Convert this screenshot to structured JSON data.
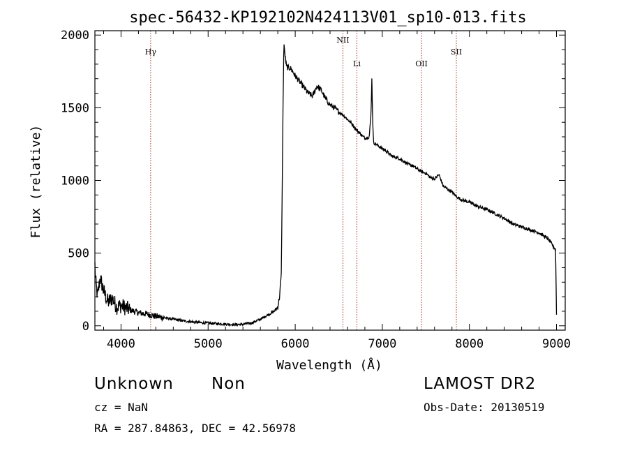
{
  "chart_data": {
    "type": "line",
    "title": "spec-56432-KP192102N424113V01_sp10-013.fits",
    "xlabel": "Wavelength (Å)",
    "ylabel": "Flux (relative)",
    "xlim": [
      3700,
      9100
    ],
    "ylim": [
      -30,
      2030
    ],
    "xticks": [
      4000,
      5000,
      6000,
      7000,
      8000,
      9000
    ],
    "yticks": [
      0,
      500,
      1000,
      1500,
      2000
    ],
    "grid": false,
    "lines": [
      {
        "label": "Hγ",
        "x": 4340
      },
      {
        "label": "NII",
        "x": 6548
      },
      {
        "label": "Li",
        "x": 6708
      },
      {
        "label": "OII",
        "x": 7450
      },
      {
        "label": "SII",
        "x": 7850
      }
    ],
    "series": [
      {
        "x": [
          3700,
          3710,
          3730,
          3760,
          3800,
          3850,
          3900,
          3950,
          4000,
          4100,
          4200,
          4300,
          4400,
          4500,
          4600,
          4700,
          4800,
          4900,
          5000,
          5100,
          5200,
          5300,
          5400,
          5500,
          5600,
          5700,
          5760,
          5800,
          5820,
          5840,
          5850,
          5860,
          5870,
          5880,
          5900,
          5950,
          6000,
          6050,
          6100,
          6150,
          6200,
          6250,
          6300,
          6350,
          6400,
          6450,
          6500,
          6550,
          6600,
          6650,
          6700,
          6750,
          6800,
          6850,
          6870,
          6880,
          6890,
          6900,
          6950,
          7000,
          7050,
          7100,
          7150,
          7200,
          7250,
          7300,
          7350,
          7400,
          7450,
          7500,
          7550,
          7600,
          7650,
          7700,
          7750,
          7800,
          7850,
          7900,
          7950,
          8000,
          8100,
          8200,
          8300,
          8400,
          8500,
          8600,
          8700,
          8800,
          8900,
          8950,
          8990,
          9000
        ],
        "y": [
          420,
          300,
          200,
          330,
          240,
          160,
          190,
          130,
          140,
          110,
          90,
          80,
          65,
          55,
          45,
          35,
          28,
          22,
          18,
          15,
          12,
          8,
          10,
          20,
          45,
          80,
          100,
          130,
          200,
          350,
          900,
          1500,
          1950,
          1880,
          1780,
          1770,
          1720,
          1680,
          1640,
          1600,
          1580,
          1650,
          1620,
          1560,
          1520,
          1500,
          1470,
          1450,
          1420,
          1390,
          1350,
          1320,
          1290,
          1300,
          1450,
          1700,
          1400,
          1260,
          1240,
          1220,
          1200,
          1170,
          1160,
          1150,
          1130,
          1110,
          1100,
          1080,
          1060,
          1050,
          1020,
          1010,
          1040,
          960,
          940,
          920,
          890,
          870,
          860,
          850,
          820,
          800,
          770,
          740,
          700,
          680,
          660,
          640,
          600,
          560,
          520,
          80
        ]
      }
    ]
  },
  "footer": {
    "class": "Unknown",
    "subclass": "Non",
    "survey": "LAMOST DR2",
    "cz": "cz = NaN",
    "obs_date": "Obs-Date: 20130519",
    "radec": "RA = 287.84863, DEC =  42.56978"
  }
}
